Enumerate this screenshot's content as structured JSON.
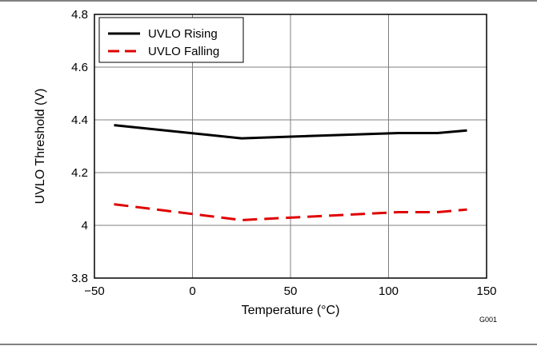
{
  "chart_data": {
    "type": "line",
    "title": "",
    "xlabel": "Temperature (°C)",
    "ylabel": "UVLO Threshold (V)",
    "xlim": [
      -50,
      150
    ],
    "ylim": [
      3.8,
      4.8
    ],
    "x_ticks": [
      -50,
      0,
      50,
      100,
      150
    ],
    "x_tick_labels": [
      "−50",
      "0",
      "50",
      "100",
      "150"
    ],
    "y_ticks": [
      3.8,
      4,
      4.2,
      4.4,
      4.6,
      4.8
    ],
    "y_tick_labels": [
      "3.8",
      "4",
      "4.2",
      "4.4",
      "4.6",
      "4.8"
    ],
    "grid": true,
    "legend_position": "top-left",
    "series": [
      {
        "name": "UVLO Rising",
        "color": "#000000",
        "style": "solid",
        "x": [
          -40,
          25,
          105,
          125,
          140
        ],
        "y": [
          4.38,
          4.33,
          4.35,
          4.35,
          4.36
        ]
      },
      {
        "name": "UVLO Falling",
        "color": "#e00000",
        "style": "dashed",
        "x": [
          -40,
          25,
          105,
          125,
          140
        ],
        "y": [
          4.08,
          4.02,
          4.05,
          4.05,
          4.06
        ]
      }
    ],
    "figure_code": "G001"
  }
}
